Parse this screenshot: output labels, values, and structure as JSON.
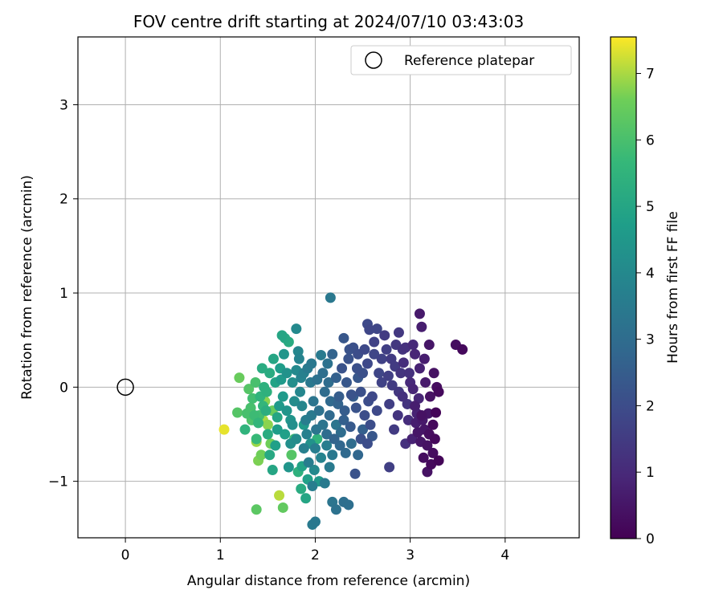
{
  "chart_data": {
    "type": "scatter",
    "title": "FOV centre drift starting at 2024/07/10 03:43:03",
    "xlabel": "Angular distance from reference (arcmin)",
    "ylabel": "Rotation from reference (arcmin)",
    "xlim": [
      -0.5,
      4.78
    ],
    "ylim": [
      -1.6,
      3.72
    ],
    "xticks": [
      0,
      1,
      2,
      3,
      4
    ],
    "yticks": [
      -1,
      0,
      1,
      2,
      3
    ],
    "grid": true,
    "legend": {
      "placement": "top-right",
      "entries": [
        "Reference platepar"
      ]
    },
    "reference_point": {
      "x": 0,
      "y": 0,
      "marker": "open-circle"
    },
    "colorbar": {
      "label": "Hours from first FF file",
      "range": [
        0,
        7.55
      ],
      "ticks": [
        0,
        1,
        2,
        3,
        4,
        5,
        6,
        7
      ],
      "colormap": "viridis"
    },
    "points": [
      [
        3.55,
        0.4,
        0.2
      ],
      [
        3.48,
        0.45,
        0.3
      ],
      [
        3.1,
        0.78,
        0.6
      ],
      [
        3.12,
        0.64,
        0.7
      ],
      [
        3.27,
        -0.27,
        0.1
      ],
      [
        3.22,
        -0.82,
        0.2
      ],
      [
        3.3,
        -0.78,
        0.1
      ],
      [
        3.25,
        0.15,
        0.4
      ],
      [
        3.2,
        -0.5,
        0.3
      ],
      [
        3.15,
        -0.45,
        0.5
      ],
      [
        3.18,
        -0.62,
        0.4
      ],
      [
        3.13,
        -0.35,
        0.6
      ],
      [
        3.08,
        -0.48,
        0.5
      ],
      [
        3.28,
        0.0,
        0.3
      ],
      [
        3.05,
        -0.2,
        0.7
      ],
      [
        3.21,
        -0.1,
        0.4
      ],
      [
        3.16,
        0.05,
        0.6
      ],
      [
        3.24,
        -0.4,
        0.2
      ],
      [
        3.12,
        -0.3,
        0.4
      ],
      [
        3.02,
        -0.55,
        0.8
      ],
      [
        3.14,
        -0.75,
        0.3
      ],
      [
        3.19,
        -0.28,
        0.5
      ],
      [
        3.3,
        -0.05,
        0.2
      ],
      [
        3.06,
        -0.38,
        0.7
      ],
      [
        3.09,
        -0.12,
        0.9
      ],
      [
        3.0,
        0.05,
        1.0
      ],
      [
        3.1,
        0.2,
        0.8
      ],
      [
        3.05,
        0.35,
        0.9
      ],
      [
        3.15,
        0.3,
        0.7
      ],
      [
        3.2,
        0.45,
        0.5
      ],
      [
        2.95,
        0.42,
        1.2
      ],
      [
        2.9,
        0.15,
        1.3
      ],
      [
        2.85,
        0.45,
        1.4
      ],
      [
        2.93,
        0.26,
        1.1
      ],
      [
        2.88,
        -0.05,
        1.4
      ],
      [
        2.97,
        -0.18,
        1.3
      ],
      [
        2.8,
        0.3,
        1.5
      ],
      [
        2.78,
        -0.18,
        1.6
      ],
      [
        2.83,
        -0.45,
        1.5
      ],
      [
        2.7,
        0.05,
        1.7
      ],
      [
        2.75,
        0.4,
        1.6
      ],
      [
        2.73,
        0.55,
        1.5
      ],
      [
        2.88,
        0.58,
        1.4
      ],
      [
        2.95,
        -0.6,
        1.2
      ],
      [
        2.78,
        -0.85,
        1.6
      ],
      [
        2.65,
        0.62,
        1.8
      ],
      [
        2.55,
        0.67,
        1.9
      ],
      [
        2.57,
        0.61,
        1.8
      ],
      [
        2.62,
        0.35,
        1.8
      ],
      [
        2.67,
        0.15,
        1.8
      ],
      [
        2.6,
        -0.1,
        1.9
      ],
      [
        2.65,
        -0.25,
        1.9
      ],
      [
        2.58,
        -0.4,
        2.0
      ],
      [
        2.52,
        -0.3,
        2.0
      ],
      [
        2.48,
        -0.55,
        2.1
      ],
      [
        2.42,
        -0.92,
        2.2
      ],
      [
        2.55,
        -0.6,
        2.0
      ],
      [
        2.5,
        0.15,
        2.1
      ],
      [
        2.45,
        0.35,
        2.0
      ],
      [
        2.4,
        0.42,
        2.1
      ],
      [
        2.35,
        0.3,
        2.2
      ],
      [
        2.3,
        0.52,
        2.3
      ],
      [
        2.28,
        0.2,
        2.2
      ],
      [
        2.33,
        0.05,
        2.3
      ],
      [
        2.38,
        -0.08,
        2.2
      ],
      [
        2.43,
        -0.22,
        2.2
      ],
      [
        2.37,
        -0.42,
        2.4
      ],
      [
        2.31,
        -0.25,
        2.5
      ],
      [
        2.25,
        -0.1,
        2.5
      ],
      [
        2.22,
        0.1,
        2.6
      ],
      [
        2.18,
        0.35,
        2.7
      ],
      [
        2.16,
        0.95,
        3.4
      ],
      [
        2.2,
        -0.55,
        2.7
      ],
      [
        2.26,
        -0.62,
        2.8
      ],
      [
        2.32,
        -0.7,
        2.9
      ],
      [
        2.12,
        -0.5,
        3.0
      ],
      [
        2.15,
        -0.3,
        2.9
      ],
      [
        2.1,
        -0.05,
        3.0
      ],
      [
        2.08,
        0.15,
        3.1
      ],
      [
        2.13,
        0.25,
        3.2
      ],
      [
        2.06,
        0.34,
        3.5
      ],
      [
        2.04,
        -0.25,
        3.2
      ],
      [
        2.01,
        -0.45,
        3.3
      ],
      [
        1.98,
        -0.15,
        3.3
      ],
      [
        1.95,
        0.05,
        3.4
      ],
      [
        1.92,
        0.2,
        3.5
      ],
      [
        1.9,
        -0.35,
        3.6
      ],
      [
        1.88,
        -0.65,
        3.7
      ],
      [
        1.93,
        -0.8,
        3.6
      ],
      [
        1.97,
        -1.05,
        3.6
      ],
      [
        2.1,
        -1.02,
        3.5
      ],
      [
        2.18,
        -1.22,
        3.3
      ],
      [
        2.22,
        -1.3,
        3.2
      ],
      [
        2.3,
        -1.22,
        3.1
      ],
      [
        2.35,
        -1.25,
        3.1
      ],
      [
        1.97,
        -1.46,
        3.5
      ],
      [
        2.0,
        -1.43,
        3.4
      ],
      [
        1.85,
        0.1,
        3.8
      ],
      [
        1.83,
        0.3,
        3.8
      ],
      [
        1.8,
        0.62,
        4.0
      ],
      [
        1.82,
        0.38,
        3.9
      ],
      [
        1.78,
        -0.15,
        4.1
      ],
      [
        1.76,
        -0.4,
        4.2
      ],
      [
        1.74,
        -0.6,
        4.2
      ],
      [
        1.72,
        -0.85,
        4.4
      ],
      [
        1.7,
        0.15,
        4.3
      ],
      [
        1.67,
        0.35,
        4.4
      ],
      [
        1.64,
        0.08,
        4.6
      ],
      [
        1.62,
        -0.2,
        4.6
      ],
      [
        1.6,
        -0.45,
        4.7
      ],
      [
        1.65,
        0.55,
        5.0
      ],
      [
        1.68,
        0.52,
        5.1
      ],
      [
        1.72,
        0.48,
        5.2
      ],
      [
        1.58,
        -0.62,
        4.8
      ],
      [
        1.55,
        -0.88,
        5.0
      ],
      [
        1.52,
        -0.72,
        5.1
      ],
      [
        1.5,
        -0.5,
        5.2
      ],
      [
        1.48,
        -0.25,
        5.3
      ],
      [
        1.46,
        0.0,
        5.4
      ],
      [
        1.44,
        0.2,
        5.2
      ],
      [
        1.42,
        -0.1,
        5.5
      ],
      [
        1.4,
        -0.38,
        5.6
      ],
      [
        1.38,
        -0.55,
        5.7
      ],
      [
        1.36,
        -0.3,
        5.8
      ],
      [
        1.34,
        -0.12,
        5.9
      ],
      [
        1.32,
        -0.22,
        6.0
      ],
      [
        1.3,
        -0.02,
        6.2
      ],
      [
        1.28,
        -0.28,
        6.0
      ],
      [
        1.26,
        -0.45,
        5.5
      ],
      [
        1.2,
        0.1,
        6.5
      ],
      [
        1.18,
        -0.27,
        6.2
      ],
      [
        1.55,
        -0.25,
        6.5
      ],
      [
        1.53,
        -0.6,
        6.6
      ],
      [
        1.5,
        -0.4,
        6.8
      ],
      [
        1.47,
        -0.15,
        6.8
      ],
      [
        1.45,
        -0.35,
        7.0
      ],
      [
        1.43,
        -0.72,
        6.6
      ],
      [
        1.4,
        -0.78,
        6.7
      ],
      [
        1.38,
        -0.58,
        6.9
      ],
      [
        1.62,
        -1.15,
        7.1
      ],
      [
        1.66,
        -1.28,
        6.4
      ],
      [
        1.38,
        -1.3,
        6.3
      ],
      [
        1.04,
        -0.45,
        7.4
      ],
      [
        1.75,
        -0.72,
        6.2
      ],
      [
        1.78,
        -0.55,
        5.8
      ],
      [
        1.82,
        -0.9,
        5.4
      ],
      [
        1.85,
        -1.08,
        5.2
      ],
      [
        1.9,
        -1.18,
        5.0
      ],
      [
        2.02,
        -0.55,
        5.5
      ],
      [
        2.04,
        -1.0,
        4.5
      ],
      [
        1.92,
        -0.98,
        4.8
      ],
      [
        1.86,
        -0.84,
        4.9
      ],
      [
        1.88,
        -0.4,
        4.6
      ],
      [
        1.95,
        -0.6,
        4.3
      ],
      [
        2.15,
        -0.85,
        3.5
      ],
      [
        2.22,
        -0.4,
        3.3
      ],
      [
        2.38,
        -0.6,
        3.0
      ],
      [
        2.45,
        -0.72,
        2.8
      ],
      [
        2.5,
        -0.45,
        2.6
      ],
      [
        2.6,
        -0.52,
        2.3
      ],
      [
        2.18,
        -0.72,
        3.4
      ],
      [
        2.06,
        -0.75,
        3.8
      ],
      [
        1.99,
        -0.88,
        4.0
      ],
      [
        2.12,
        -0.62,
        3.6
      ],
      [
        2.27,
        -0.48,
        3.0
      ],
      [
        2.4,
        -0.1,
        2.5
      ],
      [
        2.45,
        0.1,
        2.3
      ],
      [
        2.55,
        0.25,
        1.9
      ],
      [
        2.62,
        0.48,
        1.7
      ],
      [
        2.7,
        0.3,
        1.7
      ],
      [
        2.77,
        0.12,
        1.6
      ],
      [
        2.84,
        0.22,
        1.5
      ],
      [
        2.92,
        0.4,
        1.3
      ],
      [
        2.99,
        0.15,
        1.2
      ],
      [
        3.03,
        0.45,
        1.0
      ],
      [
        2.52,
        0.4,
        1.9
      ],
      [
        2.44,
        0.2,
        2.1
      ],
      [
        2.36,
        0.4,
        2.2
      ],
      [
        2.48,
        -0.05,
        2.1
      ],
      [
        2.56,
        -0.15,
        2.0
      ],
      [
        2.3,
        -0.35,
        2.6
      ],
      [
        2.24,
        -0.18,
        2.7
      ],
      [
        2.16,
        -0.15,
        2.9
      ],
      [
        2.14,
        0.05,
        3.0
      ],
      [
        2.02,
        0.08,
        3.2
      ],
      [
        1.96,
        0.25,
        3.4
      ],
      [
        1.88,
        0.15,
        3.7
      ],
      [
        1.84,
        -0.05,
        3.9
      ],
      [
        1.8,
        0.18,
        4.0
      ],
      [
        1.76,
        0.05,
        4.2
      ],
      [
        1.7,
        -0.25,
        4.4
      ],
      [
        1.66,
        -0.1,
        4.6
      ],
      [
        1.63,
        0.2,
        4.7
      ],
      [
        1.58,
        0.05,
        4.9
      ],
      [
        1.56,
        0.3,
        5.0
      ],
      [
        1.52,
        0.15,
        5.2
      ],
      [
        1.49,
        -0.05,
        5.4
      ],
      [
        1.45,
        -0.2,
        5.6
      ],
      [
        1.41,
        -0.3,
        5.9
      ],
      [
        1.37,
        0.05,
        6.0
      ],
      [
        1.33,
        -0.35,
        6.1
      ],
      [
        1.6,
        -0.32,
        5.0
      ],
      [
        1.68,
        -0.5,
        4.8
      ],
      [
        1.74,
        -0.35,
        4.4
      ],
      [
        1.8,
        -0.55,
        4.1
      ],
      [
        1.86,
        -0.2,
        3.9
      ],
      [
        1.91,
        -0.5,
        3.7
      ],
      [
        1.96,
        -0.3,
        3.5
      ],
      [
        2.0,
        -0.65,
        3.6
      ],
      [
        2.08,
        -0.4,
        3.3
      ],
      [
        3.18,
        -0.9,
        0.4
      ],
      [
        3.24,
        -0.7,
        0.3
      ],
      [
        3.11,
        -0.58,
        0.5
      ],
      [
        3.26,
        -0.55,
        0.2
      ],
      [
        3.07,
        -0.28,
        0.8
      ],
      [
        2.98,
        -0.35,
        1.1
      ],
      [
        2.92,
        -0.1,
        1.2
      ],
      [
        3.03,
        -0.02,
        0.9
      ],
      [
        2.87,
        -0.3,
        1.3
      ],
      [
        2.81,
        0.02,
        1.5
      ]
    ]
  }
}
